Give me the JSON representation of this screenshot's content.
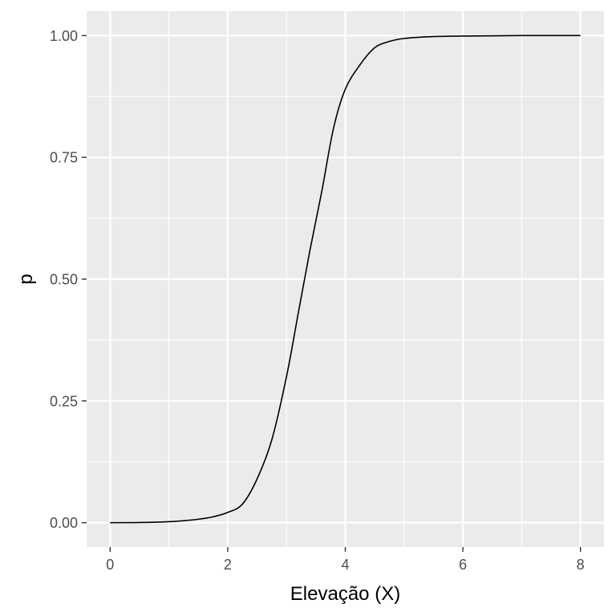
{
  "chart_data": {
    "type": "line",
    "title": "",
    "xlabel": "Elevação (X)",
    "ylabel": "p",
    "xlim": [
      -0.4,
      8.4
    ],
    "ylim": [
      -0.05,
      1.05
    ],
    "x_ticks": [
      0,
      2,
      4,
      6,
      8
    ],
    "x_tick_labels": [
      "0",
      "2",
      "4",
      "6",
      "8"
    ],
    "y_ticks": [
      0,
      0.25,
      0.5,
      0.75,
      1
    ],
    "y_tick_labels": [
      "0.00",
      "0.25",
      "0.50",
      "0.75",
      "1.00"
    ],
    "grid": true,
    "legend": "none",
    "colors": {
      "line": "#000000",
      "panel": "#ebebeb",
      "grid": "#ffffff"
    },
    "series": [
      {
        "x": [
          0,
          0.5,
          1,
          1.25,
          1.5,
          1.75,
          2,
          2.25,
          2.5,
          2.75,
          3,
          3.2,
          3.4,
          3.6,
          3.8,
          4,
          4.25,
          4.5,
          4.75,
          5,
          5.5,
          6,
          7,
          8
        ],
        "y": [
          0.0,
          0.0003,
          0.002,
          0.004,
          0.007,
          0.012,
          0.021,
          0.038,
          0.09,
          0.17,
          0.3,
          0.43,
          0.56,
          0.68,
          0.81,
          0.89,
          0.94,
          0.975,
          0.988,
          0.994,
          0.998,
          0.999,
          1.0,
          1.0
        ]
      }
    ]
  }
}
